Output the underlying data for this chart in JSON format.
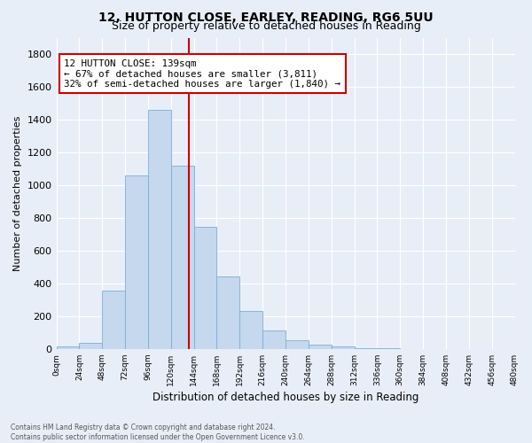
{
  "title_line1": "12, HUTTON CLOSE, EARLEY, READING, RG6 5UU",
  "title_line2": "Size of property relative to detached houses in Reading",
  "xlabel": "Distribution of detached houses by size in Reading",
  "ylabel": "Number of detached properties",
  "bar_color": "#c5d8ee",
  "bar_edge_color": "#7bafd4",
  "bin_edges": [
    0,
    24,
    48,
    72,
    96,
    120,
    144,
    168,
    192,
    216,
    240,
    264,
    288,
    312,
    336,
    360,
    384,
    408,
    432,
    456,
    480
  ],
  "bar_heights": [
    15,
    35,
    355,
    1060,
    1460,
    1120,
    745,
    440,
    230,
    110,
    55,
    25,
    15,
    5,
    2,
    1,
    0,
    0,
    0,
    0
  ],
  "tick_labels": [
    "0sqm",
    "24sqm",
    "48sqm",
    "72sqm",
    "96sqm",
    "120sqm",
    "144sqm",
    "168sqm",
    "192sqm",
    "216sqm",
    "240sqm",
    "264sqm",
    "288sqm",
    "312sqm",
    "336sqm",
    "360sqm",
    "384sqm",
    "408sqm",
    "432sqm",
    "456sqm",
    "480sqm"
  ],
  "ylim": [
    0,
    1900
  ],
  "yticks": [
    0,
    200,
    400,
    600,
    800,
    1000,
    1200,
    1400,
    1600,
    1800
  ],
  "vline_x": 139,
  "vline_color": "#cc0000",
  "annotation_line1": "12 HUTTON CLOSE: 139sqm",
  "annotation_line2": "← 67% of detached houses are smaller (3,811)",
  "annotation_line3": "32% of semi-detached houses are larger (1,840) →",
  "annotation_box_color": "#ffffff",
  "annotation_box_edge": "#cc0000",
  "footer_line1": "Contains HM Land Registry data © Crown copyright and database right 2024.",
  "footer_line2": "Contains public sector information licensed under the Open Government Licence v3.0.",
  "background_color": "#e8eef8",
  "plot_background": "#e8eef8",
  "grid_color": "#ffffff"
}
